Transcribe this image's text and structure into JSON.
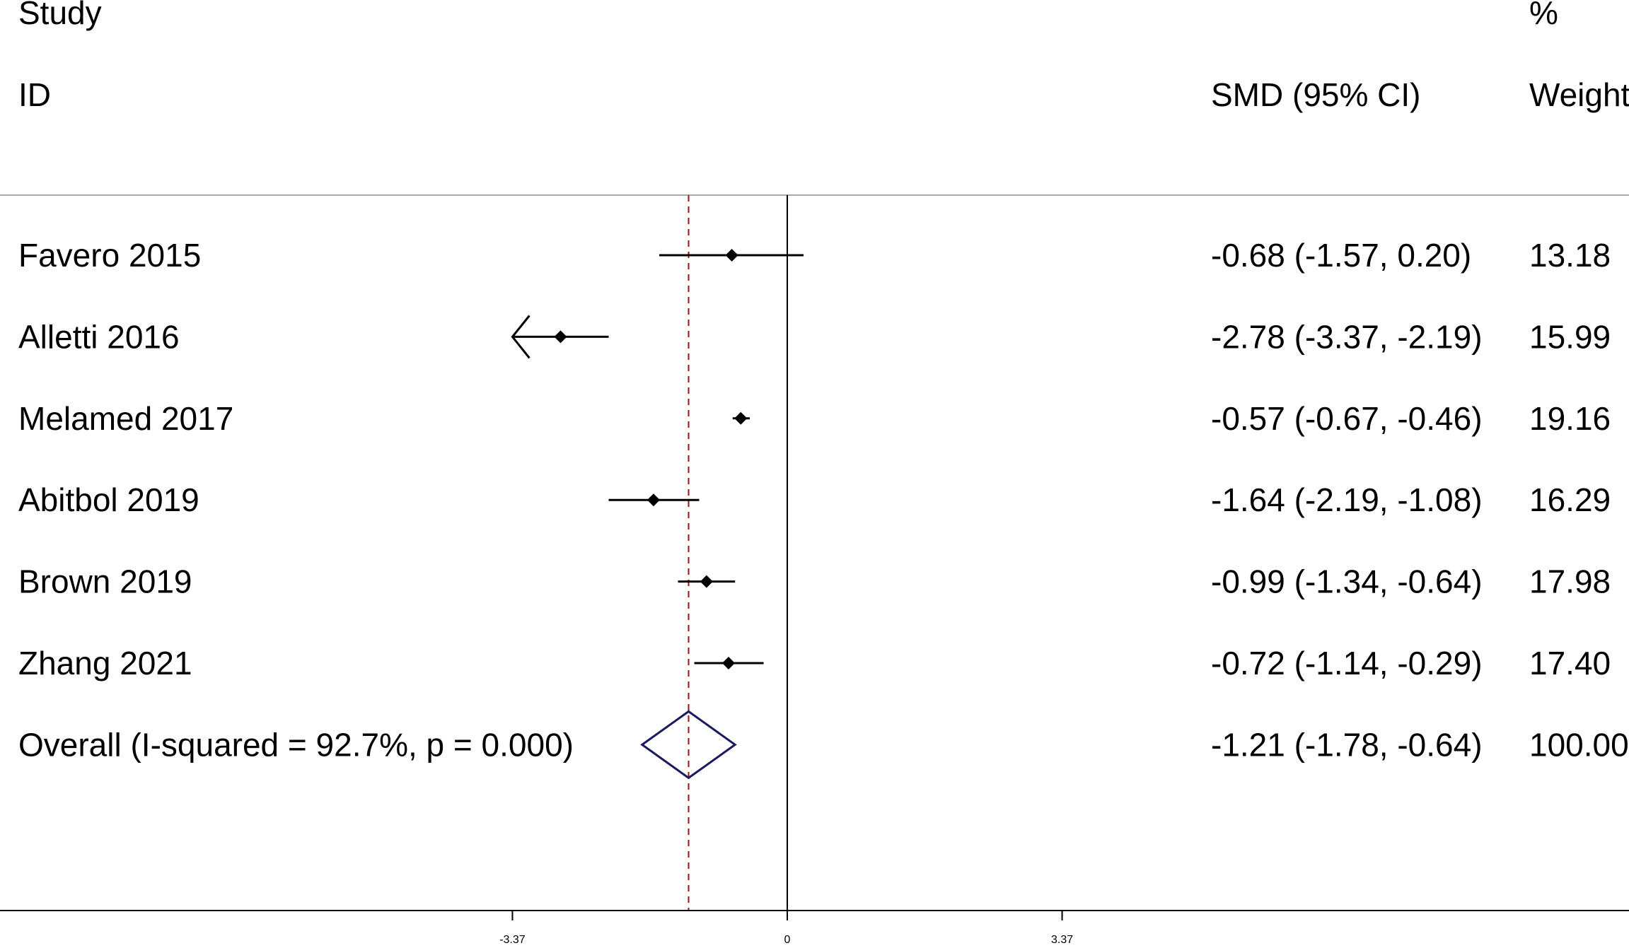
{
  "chart_data": {
    "type": "forest",
    "header": {
      "study_line1": "Study",
      "study_line2": "ID",
      "effect_header": "SMD (95% CI)",
      "weight_line1": "%",
      "weight_line2": "Weight"
    },
    "studies": [
      {
        "label": "Favero 2015",
        "smd": -0.68,
        "lower": -1.57,
        "upper": 0.2,
        "effect_text": "-0.68 (-1.57, 0.20)",
        "weight_text": "13.18",
        "weight": 13.18,
        "clipped_left": false
      },
      {
        "label": "Alletti 2016",
        "smd": -2.78,
        "lower": -3.37,
        "upper": -2.19,
        "effect_text": "-2.78 (-3.37, -2.19)",
        "weight_text": "15.99",
        "weight": 15.99,
        "clipped_left": true
      },
      {
        "label": "Melamed 2017",
        "smd": -0.57,
        "lower": -0.67,
        "upper": -0.46,
        "effect_text": "-0.57 (-0.67, -0.46)",
        "weight_text": "19.16",
        "weight": 19.16,
        "clipped_left": false
      },
      {
        "label": "Abitbol 2019",
        "smd": -1.64,
        "lower": -2.19,
        "upper": -1.08,
        "effect_text": "-1.64 (-2.19, -1.08)",
        "weight_text": "16.29",
        "weight": 16.29,
        "clipped_left": false
      },
      {
        "label": "Brown 2019",
        "smd": -0.99,
        "lower": -1.34,
        "upper": -0.64,
        "effect_text": "-0.99 (-1.34, -0.64)",
        "weight_text": "17.98",
        "weight": 17.98,
        "clipped_left": false
      },
      {
        "label": "Zhang 2021",
        "smd": -0.72,
        "lower": -1.14,
        "upper": -0.29,
        "effect_text": "-0.72 (-1.14, -0.29)",
        "weight_text": "17.40",
        "weight": 17.4,
        "clipped_left": false
      }
    ],
    "overall": {
      "label": "Overall  (I-squared = 92.7%, p = 0.000)",
      "smd": -1.21,
      "lower": -1.78,
      "upper": -0.64,
      "effect_text": "-1.21 (-1.78, -0.64)",
      "weight_text": "100.00"
    },
    "x_ticks": [
      {
        "value": -3.37,
        "label": "-3.37"
      },
      {
        "value": 0,
        "label": "0"
      },
      {
        "value": 3.37,
        "label": "3.37"
      }
    ],
    "xlim": [
      -6.94,
      7.37
    ],
    "reference_line": 0,
    "colors": {
      "ci_line": "#000000",
      "marker": "#000000",
      "overall_diamond": "#1a1a5e",
      "overall_line": "#8b1a1a",
      "axis": "#000000",
      "divider": "#a8a8a8"
    }
  }
}
